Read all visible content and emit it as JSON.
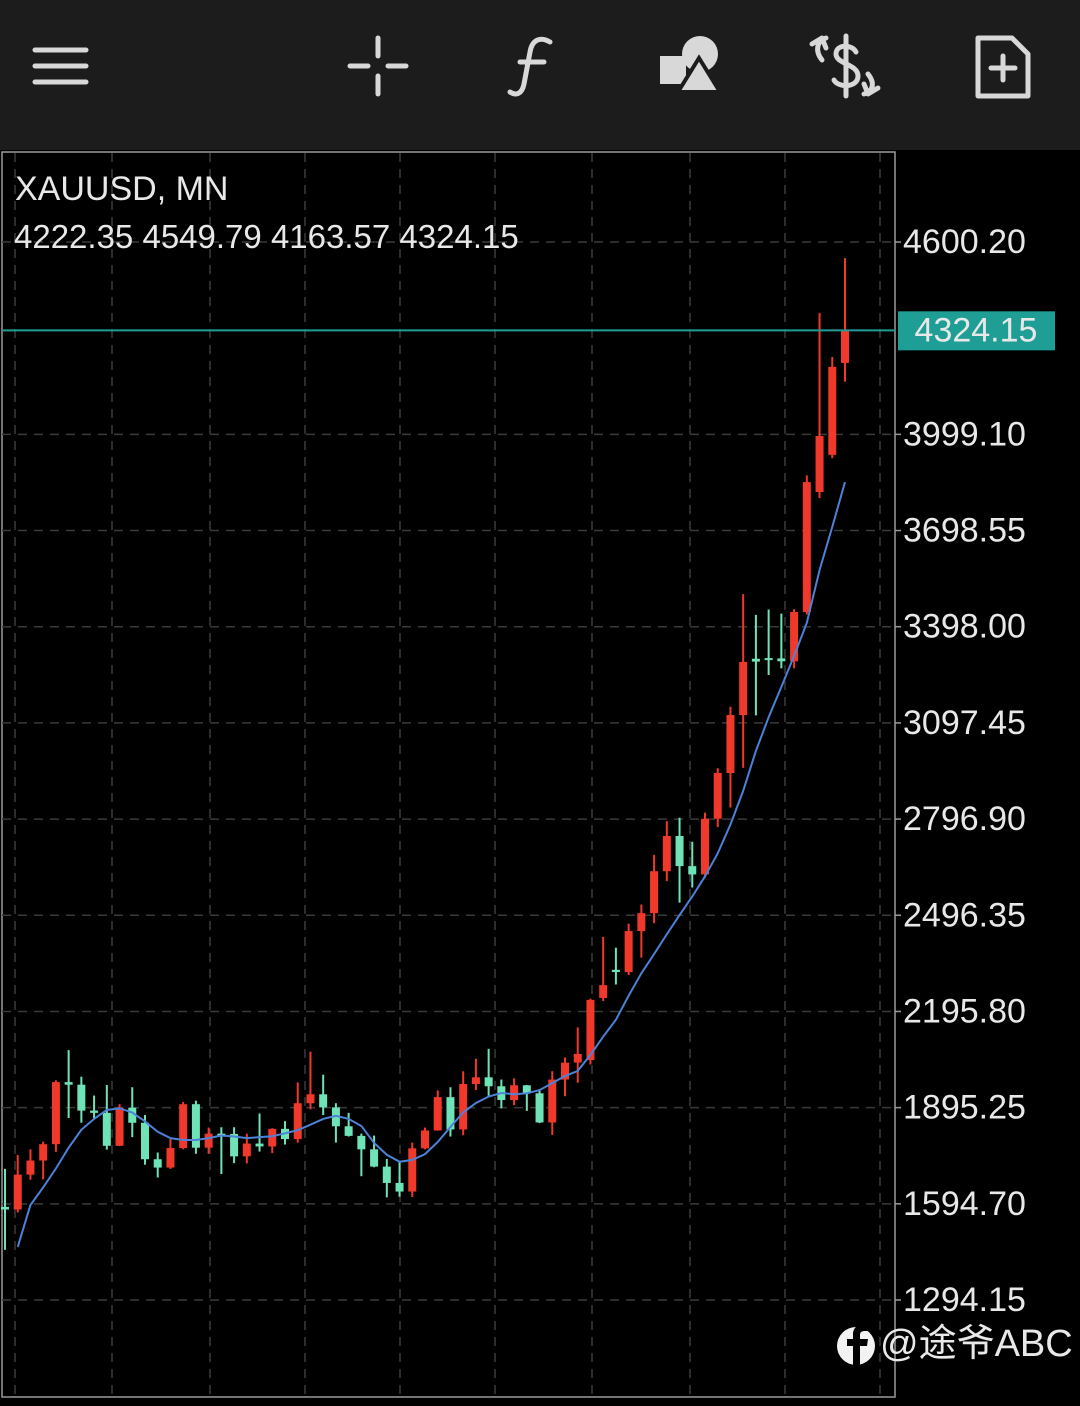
{
  "chart_data": {
    "type": "candlestick",
    "title": "XAUUSD, MN",
    "open": [
      1585,
      1577,
      1686,
      1730,
      1781,
      1975,
      1967,
      1886,
      1879,
      1776,
      1895,
      1848,
      1734,
      1708,
      1769,
      1906,
      1770,
      1814,
      1813,
      1743,
      1783,
      1774,
      1829,
      1797,
      1909,
      1937,
      1896,
      1837,
      1807,
      1765,
      1711,
      1660,
      1633,
      1768,
      1824,
      1928,
      1827,
      1969,
      1990,
      1962,
      1919,
      1965,
      1940,
      1849,
      1983,
      2036,
      2044,
      2238,
      2326,
      2319,
      2447,
      2503,
      2634,
      2744,
      2650,
      2624,
      2798,
      2941,
      3122,
      3298,
      3300,
      3299,
      3290,
      3444,
      3819,
      3935,
      4222.35
    ],
    "high": [
      1704,
      1747,
      1765,
      1789,
      1981,
      2075,
      1992,
      1933,
      1966,
      1906,
      1959,
      1872,
      1755,
      1797,
      1913,
      1917,
      1833,
      1834,
      1834,
      1814,
      1877,
      1831,
      1853,
      1974,
      2070,
      1998,
      1909,
      1879,
      1814,
      1808,
      1735,
      1730,
      1786,
      1833,
      1949,
      1959,
      2009,
      2048,
      2079,
      1983,
      1987,
      1966,
      1953,
      2009,
      2052,
      2146,
      2236,
      2429,
      2395,
      2470,
      2530,
      2685,
      2790,
      2801,
      2726,
      2817,
      2956,
      3148,
      3500,
      3435,
      3452,
      3439,
      3453,
      3871,
      4378,
      4241,
      4549.79
    ],
    "low": [
      1451,
      1568,
      1670,
      1671,
      1757,
      1863,
      1848,
      1860,
      1764,
      1775,
      1803,
      1717,
      1677,
      1704,
      1765,
      1751,
      1751,
      1688,
      1722,
      1721,
      1758,
      1753,
      1780,
      1786,
      1890,
      1872,
      1786,
      1805,
      1681,
      1709,
      1615,
      1617,
      1616,
      1765,
      1823,
      1805,
      1809,
      1950,
      1933,
      1893,
      1903,
      1885,
      1847,
      1810,
      1931,
      1973,
      2030,
      2228,
      2280,
      2310,
      2364,
      2472,
      2603,
      2536,
      2583,
      2614,
      2772,
      2833,
      2957,
      3121,
      3247,
      3268,
      3268,
      3436,
      3800,
      3925,
      4163.57
    ],
    "close": [
      1577,
      1686,
      1730,
      1781,
      1975,
      1967,
      1886,
      1879,
      1776,
      1895,
      1848,
      1734,
      1708,
      1769,
      1906,
      1770,
      1814,
      1813,
      1743,
      1783,
      1774,
      1829,
      1797,
      1909,
      1937,
      1896,
      1837,
      1807,
      1765,
      1711,
      1660,
      1633,
      1768,
      1824,
      1928,
      1827,
      1969,
      1990,
      1962,
      1919,
      1965,
      1940,
      1849,
      1983,
      2036,
      2063,
      2232,
      2278,
      2319,
      2447,
      2503,
      2634,
      2744,
      2650,
      2624,
      2798,
      2941,
      3122,
      3288,
      3289,
      3294,
      3290,
      3444,
      3850,
      3994,
      4210,
      4324.15
    ],
    "ma_values": [
      null,
      1460,
      1591,
      1646,
      1705,
      1770,
      1826,
      1860,
      1888,
      1893,
      1880,
      1852,
      1820,
      1800,
      1794,
      1794,
      1800,
      1808,
      1805,
      1800,
      1803,
      1806,
      1815,
      1825,
      1842,
      1860,
      1870,
      1860,
      1838,
      1785,
      1748,
      1726,
      1732,
      1750,
      1788,
      1835,
      1880,
      1910,
      1930,
      1941,
      1937,
      1940,
      1950,
      1972,
      1994,
      2010,
      2060,
      2117,
      2170,
      2245,
      2315,
      2375,
      2437,
      2497,
      2555,
      2618,
      2690,
      2780,
      2885,
      3010,
      3115,
      3210,
      3307,
      3410,
      3575,
      3710,
      3850
    ],
    "up_color": "#f0392b",
    "down_color": "#6fe3b8",
    "ma_color": "#4c82d8",
    "price_line_color": "#1f9e96",
    "ylim": [
      997.3,
      4881.4
    ],
    "yticks": [
      {
        "value": 4600.2,
        "label": "4600.20"
      },
      {
        "value": 3999.1,
        "label": "3999.10"
      },
      3698.55,
      {
        "value": 3398,
        "label": "3398.00"
      },
      3097.45,
      {
        "value": 2796.9,
        "label": "2796.90"
      },
      2496.35,
      {
        "value": 2195.8,
        "label": "2195.80"
      },
      1895.25,
      {
        "value": 1594.7,
        "label": "1594.70"
      },
      1294.15
    ],
    "grid": true
  },
  "watermark": "@途爷ABC"
}
